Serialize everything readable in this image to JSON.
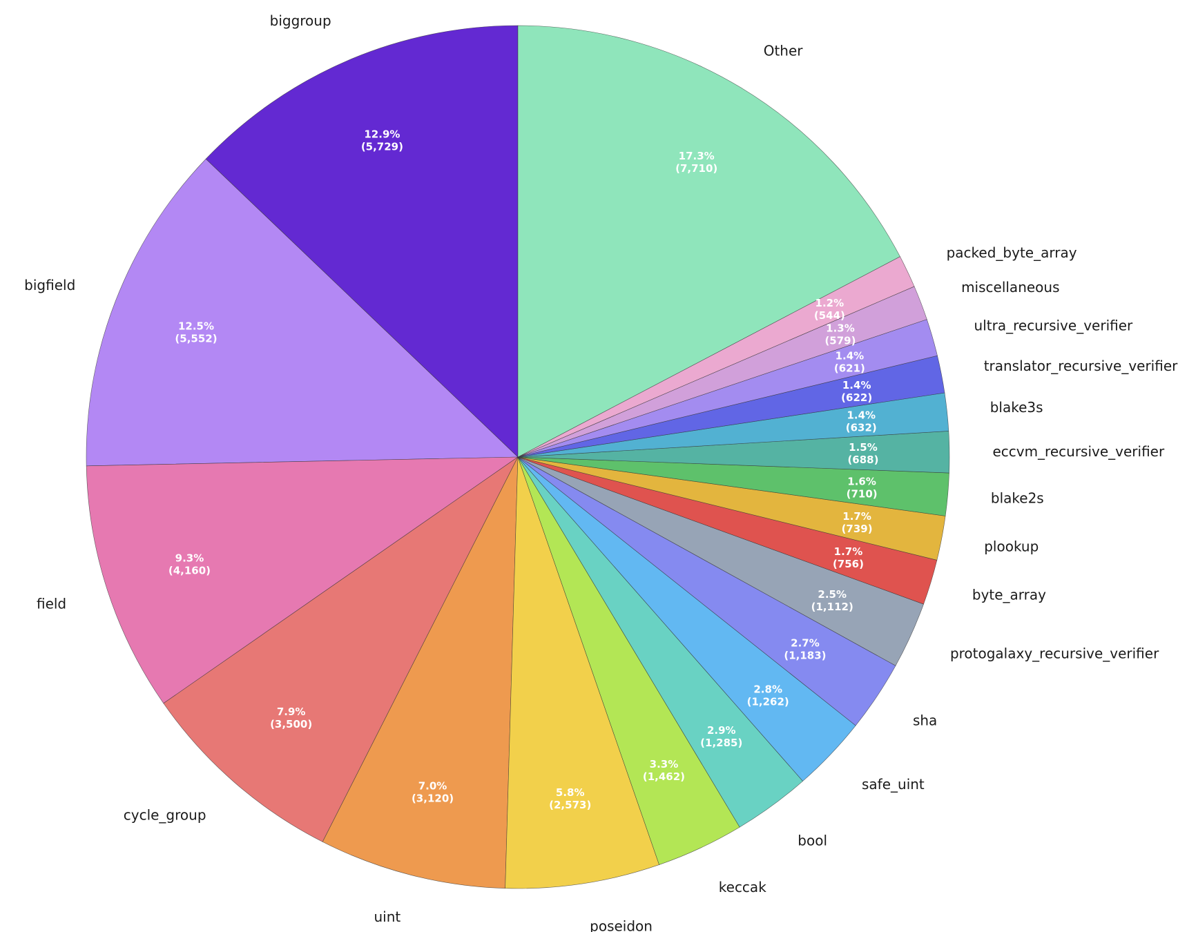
{
  "chart_data": {
    "type": "pie",
    "title": "",
    "start_angle_deg": 90,
    "direction": "counterclockwise",
    "slices": [
      {
        "label": "biggroup",
        "value": 5729,
        "pct": "12.9%",
        "count": "(5,729)",
        "color": "#6329d2"
      },
      {
        "label": "bigfield",
        "value": 5552,
        "pct": "12.5%",
        "count": "(5,552)",
        "color": "#b388f4"
      },
      {
        "label": "field",
        "value": 4160,
        "pct": "9.3%",
        "count": "(4,160)",
        "color": "#e679b1"
      },
      {
        "label": "cycle_group",
        "value": 3500,
        "pct": "7.9%",
        "count": "(3,500)",
        "color": "#e77875"
      },
      {
        "label": "uint",
        "value": 3120,
        "pct": "7.0%",
        "count": "(3,120)",
        "color": "#ee9a4f"
      },
      {
        "label": "poseidon",
        "value": 2573,
        "pct": "5.8%",
        "count": "(2,573)",
        "color": "#f2d04b"
      },
      {
        "label": "keccak",
        "value": 1462,
        "pct": "3.3%",
        "count": "(1,462)",
        "color": "#b3e655"
      },
      {
        "label": "bool",
        "value": 1285,
        "pct": "2.9%",
        "count": "(1,285)",
        "color": "#69d2c3"
      },
      {
        "label": "safe_uint",
        "value": 1262,
        "pct": "2.8%",
        "count": "(1,262)",
        "color": "#62b8f2"
      },
      {
        "label": "sha",
        "value": 1183,
        "pct": "2.7%",
        "count": "(1,183)",
        "color": "#858af0"
      },
      {
        "label": "protogalaxy_recursive_verifier",
        "value": 1112,
        "pct": "2.5%",
        "count": "(1,112)",
        "color": "#97a4b6"
      },
      {
        "label": "byte_array",
        "value": 756,
        "pct": "1.7%",
        "count": "(756)",
        "color": "#df534f"
      },
      {
        "label": "plookup",
        "value": 739,
        "pct": "1.7%",
        "count": "(739)",
        "color": "#e3b53e"
      },
      {
        "label": "blake2s",
        "value": 710,
        "pct": "1.6%",
        "count": "(710)",
        "color": "#5ec16b"
      },
      {
        "label": "eccvm_recursive_verifier",
        "value": 688,
        "pct": "1.5%",
        "count": "(688)",
        "color": "#55b3a3"
      },
      {
        "label": "blake3s",
        "value": 632,
        "pct": "1.4%",
        "count": "(632)",
        "color": "#52b1d2"
      },
      {
        "label": "translator_recursive_verifier",
        "value": 622,
        "pct": "1.4%",
        "count": "(622)",
        "color": "#6166e5"
      },
      {
        "label": "ultra_recursive_verifier",
        "value": 621,
        "pct": "1.4%",
        "count": "(621)",
        "color": "#a38cf0"
      },
      {
        "label": "miscellaneous",
        "value": 579,
        "pct": "1.3%",
        "count": "(579)",
        "color": "#d1a0da"
      },
      {
        "label": "packed_byte_array",
        "value": 544,
        "pct": "1.2%",
        "count": "(544)",
        "color": "#eba9d0"
      },
      {
        "label": "Other",
        "value": 7710,
        "pct": "17.3%",
        "count": "(7,710)",
        "color": "#8fe5bb"
      }
    ]
  }
}
